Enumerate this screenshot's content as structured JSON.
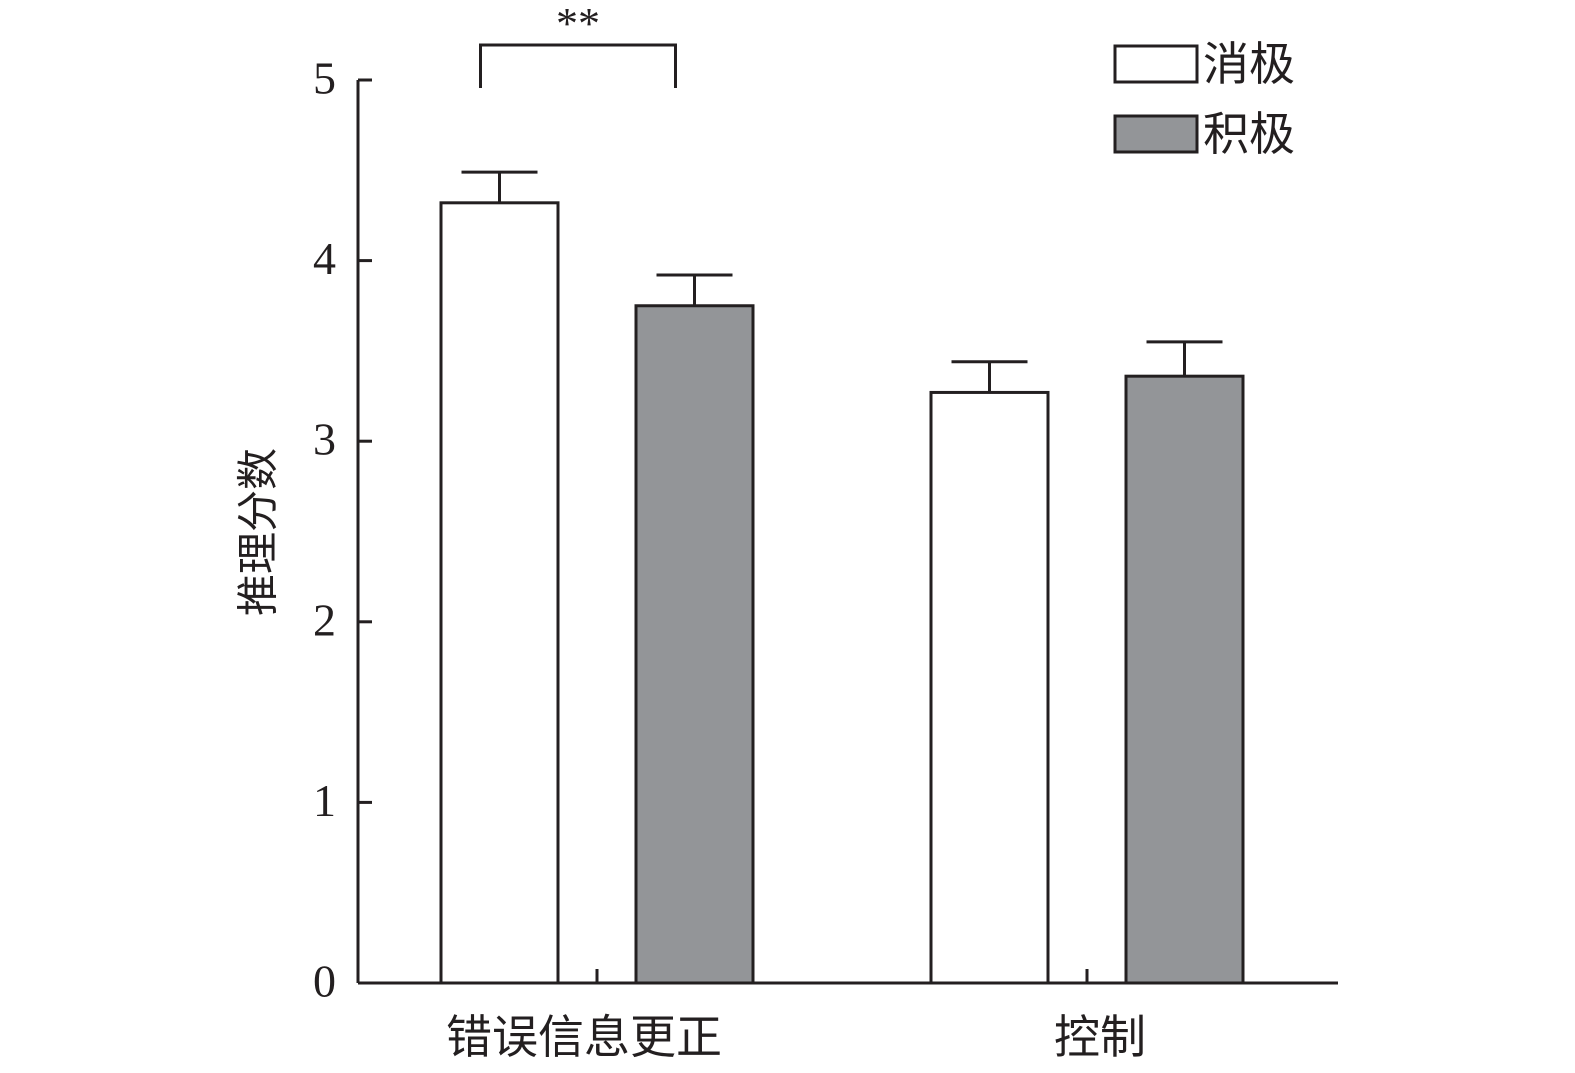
{
  "chart_data": {
    "type": "bar",
    "ylabel": "推理分数",
    "ylim": [
      0,
      5
    ],
    "yticks": [
      "0",
      "1",
      "2",
      "3",
      "4",
      "5"
    ],
    "categories": [
      "错误信息更正",
      "控制"
    ],
    "series": [
      {
        "name": "消极",
        "color": "#ffffff",
        "values": [
          4.32,
          3.27
        ],
        "error": [
          0.17,
          0.17
        ]
      },
      {
        "name": "积极",
        "color": "#939598",
        "values": [
          3.75,
          3.36
        ],
        "error": [
          0.17,
          0.19
        ]
      }
    ],
    "legend_position": "top-right",
    "annotations": [
      {
        "text": "**",
        "category": "错误信息更正",
        "between_series": [
          0,
          1
        ]
      }
    ]
  }
}
